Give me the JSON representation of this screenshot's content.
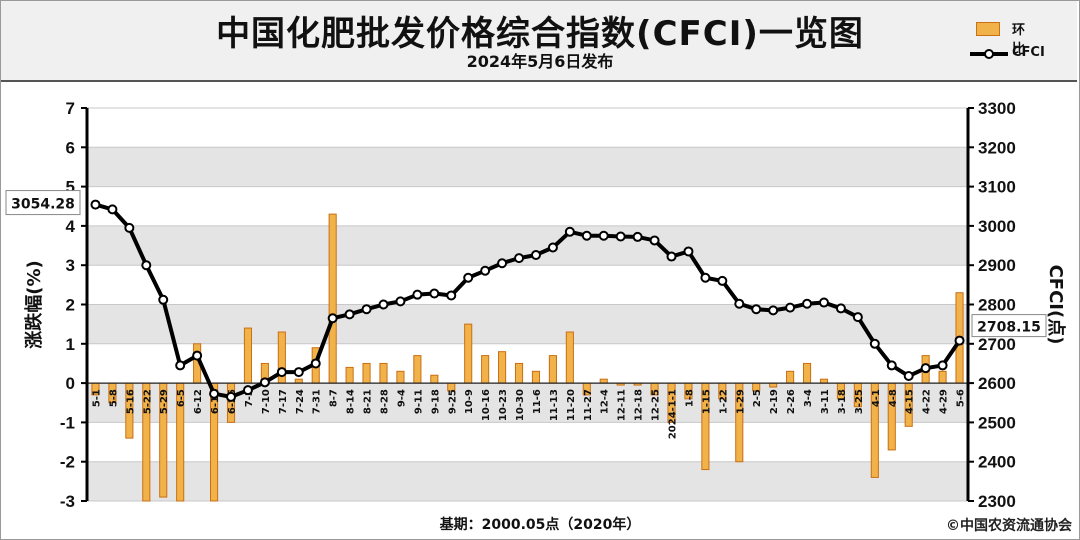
{
  "header": {
    "title": "中国化肥批发价格综合指数(CFCI)一览图",
    "subtitle": "2024年5月6日发布"
  },
  "legend": {
    "bar_label": "环比",
    "line_label": "CFCI"
  },
  "footer": {
    "base": "基期：2000.05点（2020年）",
    "source": "©中国农资流通协会"
  },
  "colors": {
    "bar_fill": "#f2b24a",
    "bar_edge": "#c96f14",
    "line": "#000000",
    "grid_band": "#e4e4e4"
  },
  "chart_data": {
    "type": "bar+line",
    "categories": [
      "5-1",
      "5-8",
      "5-16",
      "5-22",
      "5-29",
      "6-5",
      "6-12",
      "6-19",
      "6-26",
      "7-3",
      "7-10",
      "7-17",
      "7-24",
      "7-31",
      "8-7",
      "8-14",
      "8-21",
      "8-28",
      "9-4",
      "9-11",
      "9-18",
      "9-25",
      "10-9",
      "10-16",
      "10-23",
      "10-30",
      "11-6",
      "11-13",
      "11-20",
      "11-27",
      "12-4",
      "12-11",
      "12-18",
      "12-25",
      "2024-1-1",
      "1-8",
      "1-15",
      "1-22",
      "1-29",
      "2-5",
      "2-19",
      "2-26",
      "3-4",
      "3-11",
      "3-18",
      "3-25",
      "4-1",
      "4-8",
      "4-15",
      "4-22",
      "4-29",
      "5-6"
    ],
    "series": [
      {
        "name": "环比",
        "axis": "left",
        "values": [
          -0.3,
          -0.5,
          -1.4,
          -3.0,
          -2.9,
          -3.0,
          1.0,
          -3.0,
          -1.0,
          1.4,
          0.5,
          1.3,
          0.1,
          0.9,
          4.3,
          0.4,
          0.5,
          0.5,
          0.3,
          0.7,
          0.2,
          -0.2,
          1.5,
          0.7,
          0.8,
          0.5,
          0.3,
          0.7,
          1.3,
          -0.3,
          0.1,
          -0.05,
          -0.05,
          -0.3,
          -1.0,
          -0.4,
          -2.2,
          -0.4,
          -2.0,
          -0.2,
          -0.1,
          0.3,
          0.5,
          0.1,
          -0.4,
          -0.6,
          -2.4,
          -1.7,
          -1.1,
          0.7,
          0.3,
          2.3
        ]
      },
      {
        "name": "CFCI",
        "axis": "right",
        "values": [
          3054.28,
          3042,
          2995,
          2900,
          2812,
          2645,
          2670,
          2573,
          2565,
          2582,
          2602,
          2628,
          2628,
          2650,
          2765,
          2775,
          2788,
          2800,
          2808,
          2825,
          2828,
          2823,
          2868,
          2886,
          2905,
          2918,
          2926,
          2945,
          2985,
          2975,
          2975,
          2973,
          2972,
          2963,
          2922,
          2935,
          2868,
          2860,
          2802,
          2788,
          2785,
          2792,
          2802,
          2805,
          2790,
          2768,
          2700,
          2645,
          2618,
          2638,
          2645,
          2708.15
        ]
      }
    ],
    "y_left": {
      "label": "涨跌幅(%)",
      "range": [
        -3,
        7
      ],
      "ticks": [
        7,
        6,
        5,
        4,
        3,
        2,
        1,
        0,
        -1,
        -2,
        -3
      ]
    },
    "y_right": {
      "label": "CFCI(点)",
      "range": [
        2300,
        3300
      ],
      "ticks": [
        3300,
        3200,
        3100,
        3000,
        2900,
        2800,
        2700,
        2600,
        2500,
        2400,
        2300
      ]
    },
    "annotations": [
      {
        "text": "3054.28",
        "target": "first"
      },
      {
        "text": "2708.15",
        "target": "last"
      }
    ],
    "grid": "horizontal bands",
    "legend_position": "top-right"
  }
}
